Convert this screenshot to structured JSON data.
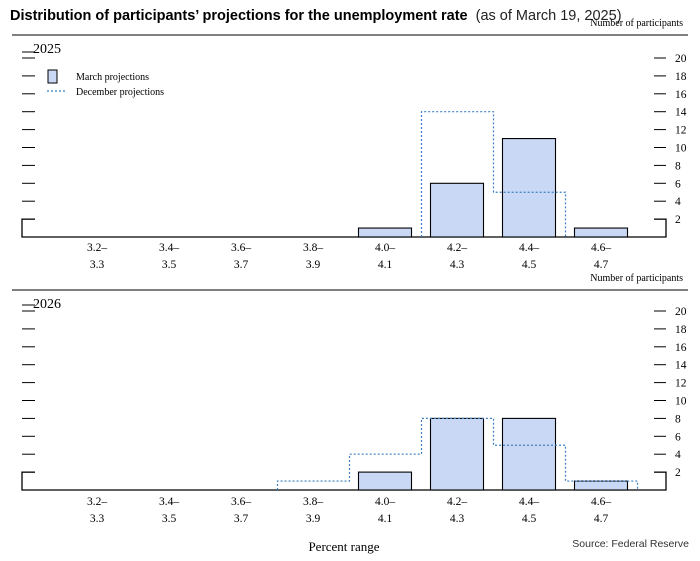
{
  "header": {
    "title": "Distribution of participants’ projections for the unemployment rate",
    "subtitle": "(as of March 19, 2025)"
  },
  "footer": {
    "xlabel": "Percent range",
    "source": "Source: Federal Reserve"
  },
  "colors": {
    "bar_fill": "#c9d8f4",
    "bar_stroke": "#000000",
    "december_line": "#3a7fc4",
    "rule": "#000000"
  },
  "chart_data": [
    {
      "type": "bar",
      "panel_title": "2025",
      "ylabel": "Number of participants",
      "ylim": [
        0,
        20
      ],
      "yticks": [
        2,
        4,
        6,
        8,
        10,
        12,
        14,
        16,
        18,
        20
      ],
      "categories": [
        "3.2–3.3",
        "3.4–3.5",
        "3.6–3.7",
        "3.8–3.9",
        "4.0–4.1",
        "4.2–4.3",
        "4.4–4.5",
        "4.6–4.7"
      ],
      "category_top": [
        "3.2–",
        "3.4–",
        "3.6–",
        "3.8–",
        "4.0–",
        "4.2–",
        "4.4–",
        "4.6–"
      ],
      "category_bottom": [
        "3.3",
        "3.5",
        "3.7",
        "3.9",
        "4.1",
        "4.3",
        "4.5",
        "4.7"
      ],
      "series": [
        {
          "name": "March projections",
          "style": "bar",
          "values": [
            0,
            0,
            0,
            0,
            1,
            6,
            11,
            1
          ]
        },
        {
          "name": "December projections",
          "style": "dotted-outline",
          "values": [
            0,
            0,
            0,
            0,
            0,
            14,
            5,
            0
          ]
        }
      ],
      "legend": {
        "position": "top-left",
        "entries": [
          "March projections",
          "December projections"
        ]
      }
    },
    {
      "type": "bar",
      "panel_title": "2026",
      "ylabel": "Number of participants",
      "ylim": [
        0,
        20
      ],
      "yticks": [
        2,
        4,
        6,
        8,
        10,
        12,
        14,
        16,
        18,
        20
      ],
      "categories": [
        "3.2–3.3",
        "3.4–3.5",
        "3.6–3.7",
        "3.8–3.9",
        "4.0–4.1",
        "4.2–4.3",
        "4.4–4.5",
        "4.6–4.7"
      ],
      "category_top": [
        "3.2–",
        "3.4–",
        "3.6–",
        "3.8–",
        "4.0–",
        "4.2–",
        "4.4–",
        "4.6–"
      ],
      "category_bottom": [
        "3.3",
        "3.5",
        "3.7",
        "3.9",
        "4.1",
        "4.3",
        "4.5",
        "4.7"
      ],
      "series": [
        {
          "name": "March projections",
          "style": "bar",
          "values": [
            0,
            0,
            0,
            0,
            2,
            8,
            8,
            1
          ]
        },
        {
          "name": "December projections",
          "style": "dotted-outline",
          "values": [
            0,
            0,
            0,
            1,
            4,
            8,
            5,
            1
          ]
        }
      ]
    }
  ]
}
